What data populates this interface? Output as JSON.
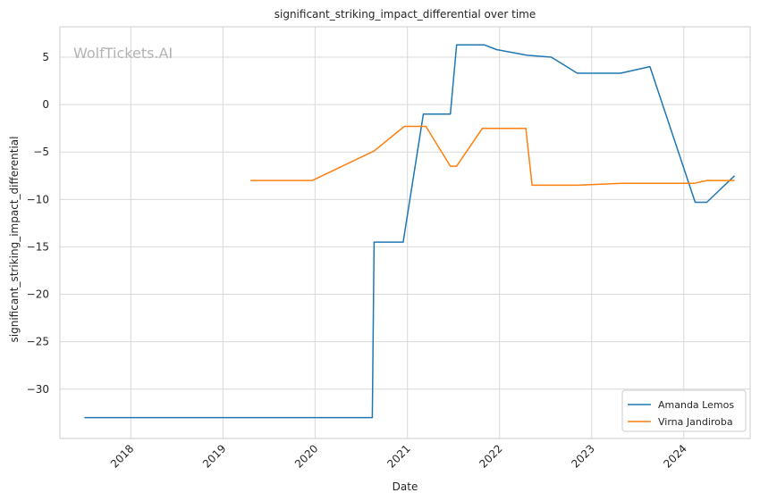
{
  "watermark": "WolfTickets.AI",
  "colors": {
    "series_0": "#1f77b4",
    "series_1": "#ff7f0e",
    "grid": "#d9d9d9",
    "spine": "#cccccc"
  },
  "chart_data": {
    "type": "line",
    "title": "significant_striking_impact_differential over time",
    "xlabel": "Date",
    "ylabel": "significant_striking_impact_differential",
    "xlim": [
      "2017-03-26",
      "2024-09-20"
    ],
    "ylim": [
      -35.2,
      8.2
    ],
    "x_ticks": [
      "2018",
      "2019",
      "2020",
      "2021",
      "2022",
      "2023",
      "2024"
    ],
    "y_ticks": [
      5,
      0,
      -5,
      -10,
      -15,
      -20,
      -25,
      -30
    ],
    "y_tick_labels": [
      "5",
      "0",
      "−5",
      "−10",
      "−15",
      "−20",
      "−25",
      "−30"
    ],
    "grid": true,
    "legend_position": "lower right",
    "series": [
      {
        "name": "Amanda Lemos",
        "x": [
          "2017-07-01",
          "2020-08-15",
          "2020-08-22",
          "2020-12-15",
          "2021-03-05",
          "2021-06-20",
          "2021-07-15",
          "2021-11-01",
          "2021-12-20",
          "2022-04-20",
          "2022-07-25",
          "2022-11-05",
          "2023-04-25",
          "2023-08-20",
          "2024-02-15",
          "2024-04-01",
          "2024-07-20"
        ],
        "y": [
          -33.0,
          -33.0,
          -14.5,
          -14.5,
          -1.0,
          -1.0,
          6.3,
          6.3,
          5.8,
          5.2,
          5.0,
          3.3,
          3.3,
          4.0,
          -10.3,
          -10.3,
          -7.5
        ]
      },
      {
        "name": "Virna Jandiroba",
        "x": [
          "2019-04-20",
          "2019-12-21",
          "2020-08-22",
          "2020-12-20",
          "2021-03-15",
          "2021-06-20",
          "2021-07-15",
          "2021-10-25",
          "2022-04-15",
          "2022-05-10",
          "2022-11-05",
          "2023-05-01",
          "2023-11-01",
          "2024-02-10",
          "2024-04-01",
          "2024-07-20"
        ],
        "y": [
          -8.0,
          -8.0,
          -4.9,
          -2.3,
          -2.3,
          -6.5,
          -6.5,
          -2.5,
          -2.5,
          -8.5,
          -8.5,
          -8.3,
          -8.3,
          -8.3,
          -8.0,
          -8.0
        ]
      }
    ]
  }
}
